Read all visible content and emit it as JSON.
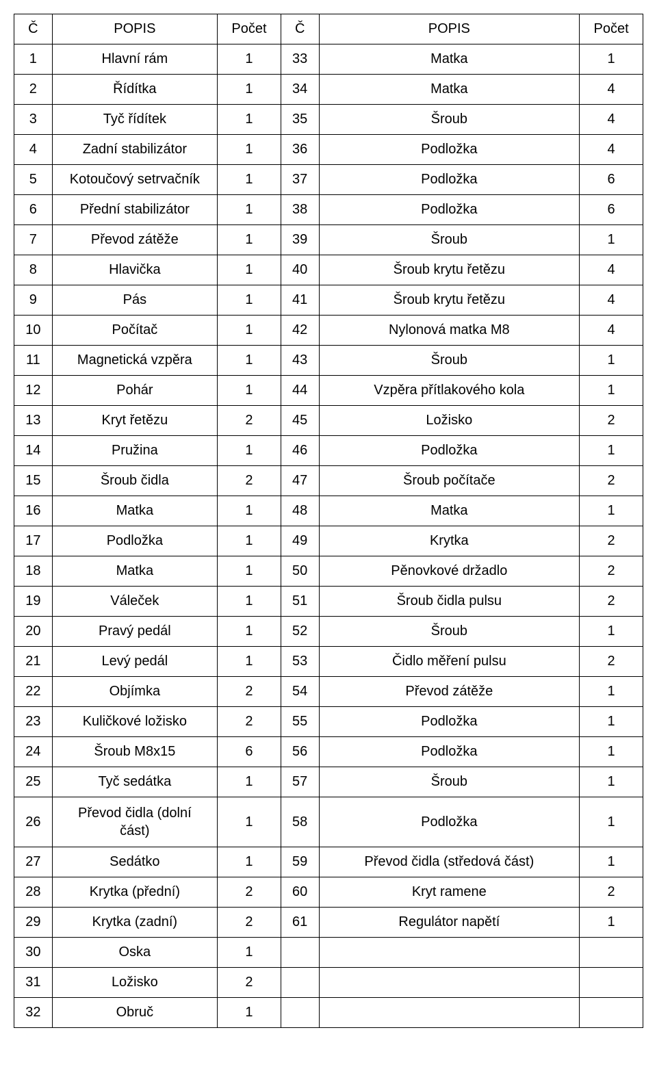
{
  "headers": {
    "col_num": "Č",
    "col_desc": "POPIS",
    "col_count": "Počet"
  },
  "rows": [
    {
      "n1": "1",
      "d1": "Hlavní rám",
      "c1": "1",
      "n2": "33",
      "d2": "Matka",
      "c2": "1"
    },
    {
      "n1": "2",
      "d1": "Řídítka",
      "c1": "1",
      "n2": "34",
      "d2": "Matka",
      "c2": "4"
    },
    {
      "n1": "3",
      "d1": "Tyč řídítek",
      "c1": "1",
      "n2": "35",
      "d2": "Šroub",
      "c2": "4"
    },
    {
      "n1": "4",
      "d1": "Zadní stabilizátor",
      "c1": "1",
      "n2": "36",
      "d2": "Podložka",
      "c2": "4"
    },
    {
      "n1": "5",
      "d1": "Kotoučový setrvačník",
      "c1": "1",
      "n2": "37",
      "d2": "Podložka",
      "c2": "6"
    },
    {
      "n1": "6",
      "d1": "Přední stabilizátor",
      "c1": "1",
      "n2": "38",
      "d2": "Podložka",
      "c2": "6"
    },
    {
      "n1": "7",
      "d1": "Převod zátěže",
      "c1": "1",
      "n2": "39",
      "d2": "Šroub",
      "c2": "1"
    },
    {
      "n1": "8",
      "d1": "Hlavička",
      "c1": "1",
      "n2": "40",
      "d2": "Šroub krytu řetězu",
      "c2": "4"
    },
    {
      "n1": "9",
      "d1": "Pás",
      "c1": "1",
      "n2": "41",
      "d2": "Šroub krytu řetězu",
      "c2": "4"
    },
    {
      "n1": "10",
      "d1": "Počítač",
      "c1": "1",
      "n2": "42",
      "d2": "Nylonová matka M8",
      "c2": "4"
    },
    {
      "n1": "11",
      "d1": "Magnetická vzpěra",
      "c1": "1",
      "n2": "43",
      "d2": "Šroub",
      "c2": "1"
    },
    {
      "n1": "12",
      "d1": "Pohár",
      "c1": "1",
      "n2": "44",
      "d2": "Vzpěra přítlakového kola",
      "c2": "1"
    },
    {
      "n1": "13",
      "d1": "Kryt řetězu",
      "c1": "2",
      "n2": "45",
      "d2": "Ložisko",
      "c2": "2"
    },
    {
      "n1": "14",
      "d1": "Pružina",
      "c1": "1",
      "n2": "46",
      "d2": "Podložka",
      "c2": "1"
    },
    {
      "n1": "15",
      "d1": "Šroub čidla",
      "c1": "2",
      "n2": "47",
      "d2": "Šroub počítače",
      "c2": "2"
    },
    {
      "n1": "16",
      "d1": "Matka",
      "c1": "1",
      "n2": "48",
      "d2": "Matka",
      "c2": "1"
    },
    {
      "n1": "17",
      "d1": "Podložka",
      "c1": "1",
      "n2": "49",
      "d2": "Krytka",
      "c2": "2"
    },
    {
      "n1": "18",
      "d1": "Matka",
      "c1": "1",
      "n2": "50",
      "d2": "Pěnovkové držadlo",
      "c2": "2"
    },
    {
      "n1": "19",
      "d1": "Váleček",
      "c1": "1",
      "n2": "51",
      "d2": "Šroub čidla pulsu",
      "c2": "2"
    },
    {
      "n1": "20",
      "d1": "Pravý pedál",
      "c1": "1",
      "n2": "52",
      "d2": "Šroub",
      "c2": "1"
    },
    {
      "n1": "21",
      "d1": "Levý pedál",
      "c1": "1",
      "n2": "53",
      "d2": "Čidlo měření pulsu",
      "c2": "2"
    },
    {
      "n1": "22",
      "d1": "Objímka",
      "c1": "2",
      "n2": "54",
      "d2": "Převod zátěže",
      "c2": "1"
    },
    {
      "n1": "23",
      "d1": "Kuličkové ložisko",
      "c1": "2",
      "n2": "55",
      "d2": "Podložka",
      "c2": "1"
    },
    {
      "n1": "24",
      "d1": "Šroub M8x15",
      "c1": "6",
      "n2": "56",
      "d2": "Podložka",
      "c2": "1"
    },
    {
      "n1": "25",
      "d1": "Tyč sedátka",
      "c1": "1",
      "n2": "57",
      "d2": "Šroub",
      "c2": "1"
    },
    {
      "n1": "26",
      "d1": "Převod čidla (dolní\nčást)",
      "c1": "1",
      "n2": "58",
      "d2": "Podložka",
      "c2": "1"
    },
    {
      "n1": "27",
      "d1": "Sedátko",
      "c1": "1",
      "n2": "59",
      "d2": "Převod čidla (středová část)",
      "c2": "1"
    },
    {
      "n1": "28",
      "d1": "Krytka (přední)",
      "c1": "2",
      "n2": "60",
      "d2": "Kryt ramene",
      "c2": "2"
    },
    {
      "n1": "29",
      "d1": "Krytka (zadní)",
      "c1": "2",
      "n2": "61",
      "d2": "Regulátor napětí",
      "c2": "1"
    },
    {
      "n1": "30",
      "d1": "Oska",
      "c1": "1",
      "n2": "",
      "d2": "",
      "c2": ""
    },
    {
      "n1": "31",
      "d1": "Ložisko",
      "c1": "2",
      "n2": "",
      "d2": "",
      "c2": ""
    },
    {
      "n1": "32",
      "d1": "Obruč",
      "c1": "1",
      "n2": "",
      "d2": "",
      "c2": ""
    }
  ],
  "styles": {
    "border_color": "#000000",
    "background_color": "#ffffff",
    "text_color": "#000000",
    "font_size": 20,
    "cell_padding": "10px 6px",
    "col_widths": [
      "6%",
      "26%",
      "10%",
      "6%",
      "41%",
      "10%"
    ]
  }
}
